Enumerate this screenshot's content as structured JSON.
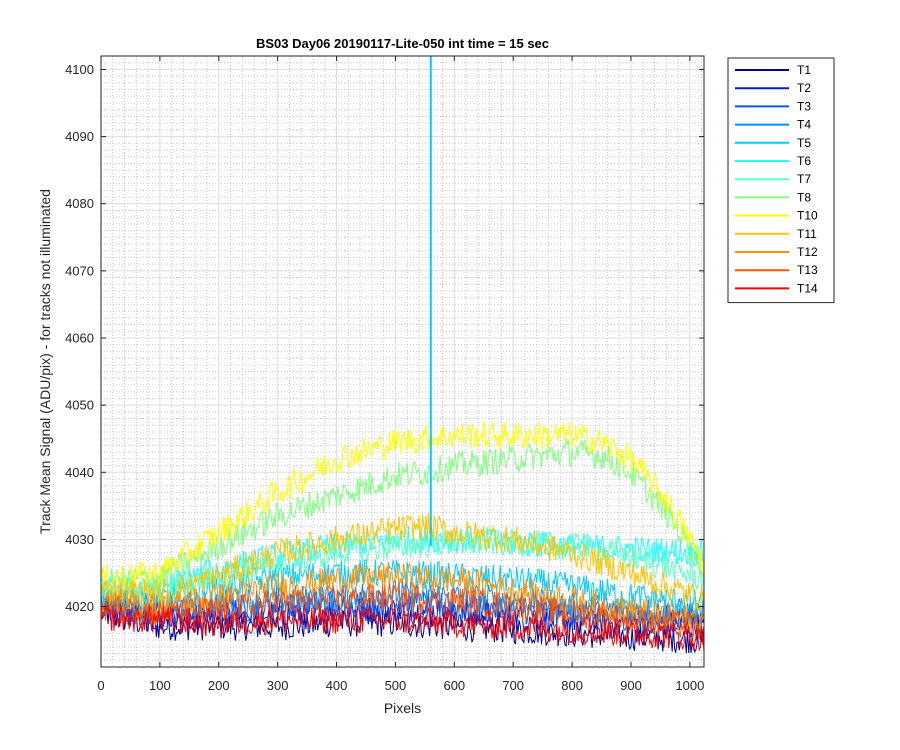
{
  "chart_data": {
    "type": "line",
    "title": "BS03 Day06 20190117-Lite-050 int time = 15 sec",
    "xlabel": "Pixels",
    "ylabel": "Track Mean Signal (ADU/pix) - for tracks not illuminated",
    "xlim": [
      0,
      1024
    ],
    "ylim": [
      4011,
      4102
    ],
    "x_ticks": [
      0,
      100,
      200,
      300,
      400,
      500,
      600,
      700,
      800,
      900,
      1000
    ],
    "y_ticks": [
      4020,
      4030,
      4040,
      4050,
      4060,
      4070,
      4080,
      4090,
      4100
    ],
    "grid": "major solid, minor dotted",
    "legend_position": "outside-right",
    "series": [
      {
        "name": "T1",
        "color": "#00008f",
        "x": [
          0,
          100,
          200,
          300,
          400,
          500,
          600,
          700,
          800,
          900,
          1024
        ],
        "y": [
          4019,
          4017,
          4017,
          4017,
          4017.5,
          4017.5,
          4017,
          4016.5,
          4016,
          4015.5,
          4015
        ]
      },
      {
        "name": "T2",
        "color": "#0020d0",
        "x": [
          0,
          100,
          200,
          300,
          400,
          500,
          600,
          700,
          800,
          900,
          1024
        ],
        "y": [
          4019.5,
          4018,
          4018.5,
          4019,
          4019.5,
          4019.5,
          4019,
          4018.5,
          4018,
          4017.5,
          4017
        ]
      },
      {
        "name": "T3",
        "color": "#0055ff",
        "x": [
          0,
          100,
          200,
          300,
          400,
          500,
          600,
          700,
          800,
          900,
          1024
        ],
        "y": [
          4020,
          4019,
          4019.5,
          4020,
          4020.5,
          4020.5,
          4020,
          4019.5,
          4019,
          4018.5,
          4018
        ]
      },
      {
        "name": "T4",
        "color": "#0090ff",
        "x": [
          0,
          100,
          200,
          300,
          400,
          500,
          600,
          700,
          800,
          900,
          1024
        ],
        "y": [
          4020.5,
          4020,
          4020.5,
          4021,
          4021.5,
          4022,
          4021.5,
          4021,
          4020,
          4019.5,
          4019
        ]
      },
      {
        "name": "T5",
        "color": "#00ccff",
        "x": [
          0,
          100,
          200,
          300,
          400,
          500,
          600,
          700,
          800,
          900,
          1024
        ],
        "y": [
          4021.5,
          4021,
          4023,
          4024.5,
          4025,
          4025,
          4024.5,
          4024,
          4023,
          4021.5,
          4020.5
        ]
      },
      {
        "name": "T6",
        "color": "#20ffff",
        "x": [
          0,
          100,
          200,
          300,
          400,
          500,
          600,
          700,
          800,
          900,
          1024
        ],
        "y": [
          4022.5,
          4023,
          4025.5,
          4027.5,
          4029,
          4030,
          4030,
          4029.5,
          4029,
          4028.5,
          4028
        ]
      },
      {
        "name": "T7",
        "color": "#60ffc8",
        "x": [
          0,
          100,
          200,
          300,
          400,
          500,
          600,
          700,
          800,
          900,
          1024
        ],
        "y": [
          4022.5,
          4022.5,
          4024.5,
          4026.5,
          4028,
          4029,
          4029.5,
          4029.5,
          4029,
          4027.5,
          4024
        ]
      },
      {
        "name": "T8",
        "color": "#80ff80",
        "x": [
          0,
          100,
          200,
          300,
          400,
          500,
          550,
          600,
          700,
          800,
          850,
          900,
          960,
          1024
        ],
        "y": [
          4023.5,
          4024.5,
          4029,
          4033.5,
          4036.5,
          4039.5,
          4040,
          4041,
          4042,
          4043,
          4042.5,
          4040,
          4034,
          4026
        ]
      },
      {
        "name": "T10",
        "color": "#ffff00",
        "x": [
          0,
          100,
          200,
          300,
          400,
          500,
          550,
          600,
          700,
          800,
          850,
          900,
          960,
          1024
        ],
        "y": [
          4024,
          4025,
          4031,
          4037,
          4042,
          4044.5,
          4045,
          4045.5,
          4045.5,
          4045.5,
          4044.5,
          4042,
          4036,
          4026.5
        ]
      },
      {
        "name": "T11",
        "color": "#ffc400",
        "x": [
          0,
          100,
          200,
          300,
          400,
          500,
          550,
          600,
          700,
          800,
          900,
          1024
        ],
        "y": [
          4022.5,
          4022,
          4024.5,
          4028,
          4030,
          4031.5,
          4032,
          4031,
          4030,
          4028,
          4025,
          4021
        ]
      },
      {
        "name": "T12",
        "color": "#ff9000",
        "x": [
          0,
          100,
          200,
          300,
          400,
          500,
          600,
          700,
          800,
          900,
          1024
        ],
        "y": [
          4021,
          4020,
          4021.5,
          4023,
          4024,
          4024.5,
          4024,
          4022.5,
          4021,
          4019.5,
          4018
        ]
      },
      {
        "name": "T13",
        "color": "#ff5000",
        "x": [
          0,
          100,
          200,
          300,
          400,
          500,
          600,
          700,
          800,
          900,
          1024
        ],
        "y": [
          4020,
          4019,
          4019.5,
          4020.5,
          4021,
          4021.5,
          4021,
          4020,
          4019,
          4018,
          4017
        ]
      },
      {
        "name": "T14",
        "color": "#ff0000",
        "x": [
          0,
          100,
          200,
          300,
          400,
          500,
          600,
          700,
          800,
          900,
          1024
        ],
        "y": [
          4018.5,
          4018,
          4017.5,
          4018,
          4018,
          4018,
          4017.5,
          4017,
          4016.5,
          4016,
          4015.5
        ]
      }
    ],
    "annotations": [
      {
        "type": "vertical_spike",
        "series": "T5",
        "x": 560,
        "y_from": 4029,
        "y_to": 4102
      }
    ]
  }
}
